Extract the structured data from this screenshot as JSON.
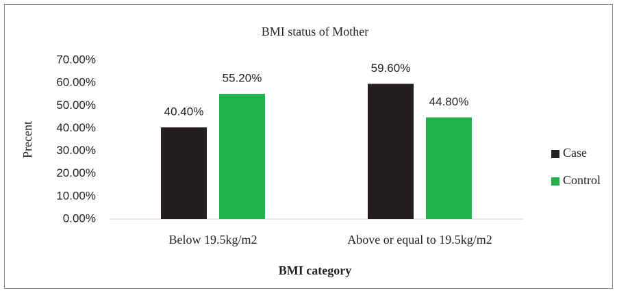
{
  "chart_data": {
    "type": "bar",
    "title": "BMI status of Mother",
    "x_label": "BMI category",
    "y_label": "Precent",
    "categories": [
      "Below 19.5kg/m2",
      "Above or equal to 19.5kg/m2"
    ],
    "series": [
      {
        "name": "Case",
        "color": "#231f20",
        "values": [
          40.4,
          59.6
        ],
        "value_labels": [
          "40.40%",
          "59.60%"
        ]
      },
      {
        "name": "Control",
        "color": "#21b24b",
        "values": [
          55.2,
          44.8
        ],
        "value_labels": [
          "55.20%",
          "44.80%"
        ]
      }
    ],
    "ylim": [
      0,
      70
    ],
    "yticks": [
      {
        "value": 0,
        "label": "0.00%"
      },
      {
        "value": 10,
        "label": "10.00%"
      },
      {
        "value": 20,
        "label": "20.00%"
      },
      {
        "value": 30,
        "label": "30.00%"
      },
      {
        "value": 40,
        "label": "40.00%"
      },
      {
        "value": 50,
        "label": "50.00%"
      },
      {
        "value": 60,
        "label": "60.00%"
      },
      {
        "value": 70,
        "label": "70.00%"
      }
    ],
    "grid": false,
    "legend": "right"
  }
}
